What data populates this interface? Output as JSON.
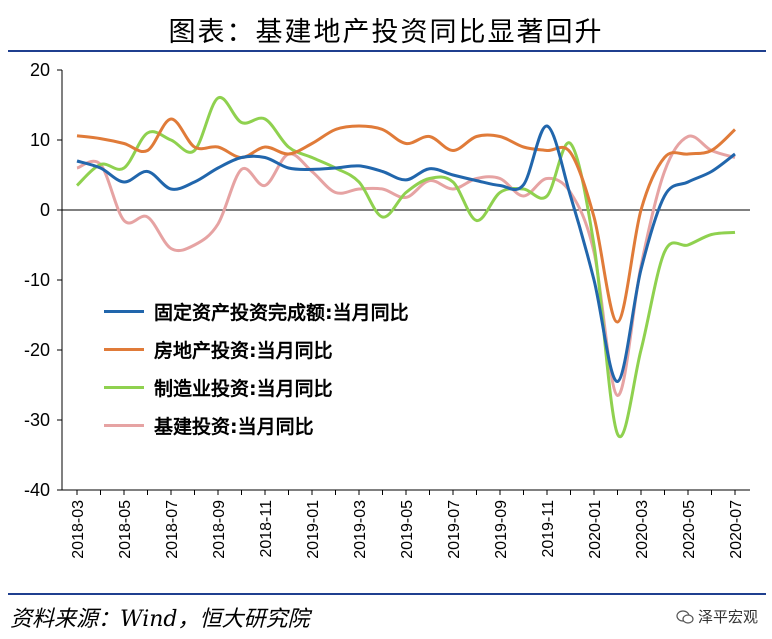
{
  "title": "图表：基建地产投资同比显著回升",
  "source": "资料来源：Wind，恒大研究院",
  "watermark": "泽平宏观",
  "chart_data": {
    "type": "line",
    "ylim": [
      -40,
      20
    ],
    "yticks": [
      20,
      10,
      0,
      -10,
      -20,
      -30,
      -40
    ],
    "x_ticks": [
      "2018-03",
      "2018-05",
      "2018-07",
      "2018-09",
      "2018-11",
      "2019-01",
      "2019-03",
      "2019-05",
      "2019-07",
      "2019-09",
      "2019-11",
      "2020-01",
      "2020-03",
      "2020-05",
      "2020-07"
    ],
    "x": [
      "2018-03",
      "2018-04",
      "2018-05",
      "2018-06",
      "2018-07",
      "2018-08",
      "2018-09",
      "2018-10",
      "2018-11",
      "2018-12",
      "2019-01",
      "2019-02",
      "2019-03",
      "2019-04",
      "2019-05",
      "2019-06",
      "2019-07",
      "2019-08",
      "2019-09",
      "2019-10",
      "2019-11",
      "2019-12",
      "2020-01",
      "2020-02",
      "2020-03",
      "2020-04",
      "2020-05",
      "2020-06",
      "2020-07"
    ],
    "legend_position": "center-left",
    "series": [
      {
        "name": "固定资产投资完成额:当月同比",
        "color": "#2166ac",
        "values": [
          7.0,
          6.0,
          4.0,
          5.5,
          3.0,
          4.0,
          6.0,
          7.5,
          7.5,
          6.0,
          5.8,
          6.0,
          6.3,
          5.5,
          4.3,
          5.9,
          5.0,
          4.2,
          3.5,
          3.6,
          12.0,
          2.0,
          -10.0,
          -24.5,
          -8.5,
          2.0,
          4.0,
          5.5,
          8.0
        ]
      },
      {
        "name": "房地产投资:当月同比",
        "color": "#e07b39",
        "values": [
          10.6,
          10.2,
          9.5,
          8.5,
          13.0,
          9.0,
          9.0,
          7.5,
          9.0,
          8.0,
          9.5,
          11.5,
          12.0,
          11.5,
          9.5,
          10.5,
          8.5,
          10.5,
          10.5,
          9.0,
          8.5,
          8.2,
          -1.0,
          -16.0,
          0.0,
          7.5,
          8.0,
          8.5,
          11.5
        ]
      },
      {
        "name": "制造业投资:当月同比",
        "color": "#8fd14f",
        "values": [
          3.5,
          6.5,
          6.0,
          11.0,
          10.0,
          8.5,
          16.0,
          12.5,
          13.0,
          9.0,
          7.5,
          6.0,
          4.0,
          -1.0,
          2.5,
          4.5,
          4.0,
          -1.5,
          2.5,
          3.0,
          2.0,
          9.5,
          -5.0,
          -32.0,
          -20.0,
          -6.0,
          -5.0,
          -3.5,
          -3.2
        ]
      },
      {
        "name": "基建投资:当月同比",
        "color": "#e6a3a3",
        "values": [
          6.0,
          6.5,
          -1.5,
          -1.0,
          -5.5,
          -5.0,
          -2.0,
          5.8,
          3.5,
          8.0,
          5.5,
          2.5,
          3.0,
          3.0,
          1.8,
          4.2,
          3.0,
          4.5,
          4.5,
          2.0,
          4.5,
          2.5,
          -6.0,
          -26.5,
          -8.0,
          5.5,
          10.5,
          8.5,
          7.5
        ]
      }
    ]
  }
}
